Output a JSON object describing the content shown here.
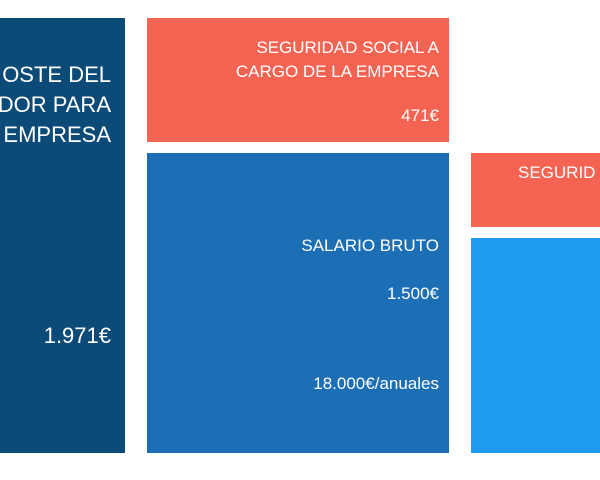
{
  "colors": {
    "dark_blue": "#0c4a78",
    "mid_blue": "#1d6fb5",
    "light_blue": "#1e9cf0",
    "coral": "#f56452"
  },
  "total_cost": {
    "title_lines": [
      "OSTE DEL",
      "DOR PARA",
      "EMPRESA"
    ],
    "amount": "1.971€"
  },
  "employer_social_security": {
    "title_lines": [
      "SEGURIDAD SOCIAL A",
      "CARGO DE LA EMPRESA"
    ],
    "amount": "471€"
  },
  "gross_salary": {
    "title": "SALARIO BRUTO",
    "monthly": "1.500€",
    "annual": "18.000€/anuales"
  },
  "employee_social_security": {
    "title": "SEGURID"
  }
}
